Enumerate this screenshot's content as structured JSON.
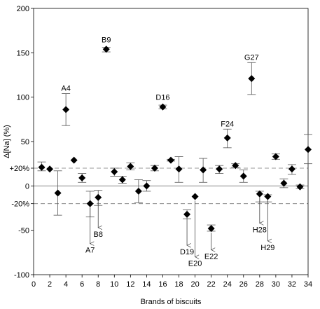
{
  "chart_data": {
    "type": "scatter",
    "title": "",
    "xlabel": "Brands of biscuits",
    "ylabel": "Δ[Na] (%)",
    "xlim": [
      0,
      34
    ],
    "ylim": [
      -100,
      200
    ],
    "x_ticks": [
      "0",
      "2",
      "4",
      "6",
      "8",
      "10",
      "12",
      "14",
      "16",
      "18",
      "20",
      "22",
      "24",
      "26",
      "28",
      "30",
      "32",
      "34"
    ],
    "y_ticks": [
      {
        "value": 200,
        "label": "200"
      },
      {
        "value": 150,
        "label": "150"
      },
      {
        "value": 100,
        "label": "100"
      },
      {
        "value": 50,
        "label": "50"
      },
      {
        "value": 20,
        "label": "+20%"
      },
      {
        "value": 0,
        "label": "0"
      },
      {
        "value": -20,
        "label": "-20%"
      },
      {
        "value": -50,
        "label": "-50"
      },
      {
        "value": -100,
        "label": "-100"
      }
    ],
    "reference_lines": [
      20,
      0,
      -20
    ],
    "series": [
      {
        "marker": "diamond",
        "points": [
          {
            "x": 1,
            "y": 21,
            "err_low": 17,
            "err_high": 27
          },
          {
            "x": 2,
            "y": 19,
            "err_low": 19,
            "err_high": 19
          },
          {
            "x": 3,
            "y": -8,
            "err_low": -33,
            "err_high": 17
          },
          {
            "x": 4,
            "y": 86,
            "err_low": 68,
            "err_high": 104
          },
          {
            "x": 5,
            "y": 29,
            "err_low": 29,
            "err_high": 29
          },
          {
            "x": 6,
            "y": 9,
            "err_low": 4,
            "err_high": 14
          },
          {
            "x": 7,
            "y": -20,
            "err_low": -35,
            "err_high": -6
          },
          {
            "x": 8,
            "y": -13,
            "err_low": -22,
            "err_high": -5
          },
          {
            "x": 9,
            "y": 154,
            "err_low": 151,
            "err_high": 156
          },
          {
            "x": 10,
            "y": 16,
            "err_low": 11,
            "err_high": 20
          },
          {
            "x": 11,
            "y": 7,
            "err_low": 3,
            "err_high": 11
          },
          {
            "x": 12,
            "y": 22,
            "err_low": 18,
            "err_high": 26
          },
          {
            "x": 13,
            "y": -6,
            "err_low": -19,
            "err_high": 7
          },
          {
            "x": 14,
            "y": 0,
            "err_low": -6,
            "err_high": 6
          },
          {
            "x": 15,
            "y": 20,
            "err_low": 17,
            "err_high": 23
          },
          {
            "x": 16,
            "y": 89,
            "err_low": 87,
            "err_high": 91
          },
          {
            "x": 17,
            "y": 29,
            "err_low": 28,
            "err_high": 30
          },
          {
            "x": 18,
            "y": 19,
            "err_low": 4,
            "err_high": 33
          },
          {
            "x": 19,
            "y": -32,
            "err_low": -37,
            "err_high": -27
          },
          {
            "x": 20,
            "y": -12,
            "err_low": -12,
            "err_high": -12
          },
          {
            "x": 21,
            "y": 18,
            "err_low": 4,
            "err_high": 31
          },
          {
            "x": 22,
            "y": -48,
            "err_low": -51,
            "err_high": -44
          },
          {
            "x": 23,
            "y": 19,
            "err_low": 14,
            "err_high": 23
          },
          {
            "x": 24,
            "y": 54,
            "err_low": 43,
            "err_high": 64
          },
          {
            "x": 25,
            "y": 23,
            "err_low": 21,
            "err_high": 25
          },
          {
            "x": 26,
            "y": 11,
            "err_low": 4,
            "err_high": 18
          },
          {
            "x": 27,
            "y": 121,
            "err_low": 103,
            "err_high": 139
          },
          {
            "x": 28,
            "y": -9,
            "err_low": -18,
            "err_high": -6
          },
          {
            "x": 29,
            "y": -12,
            "err_low": -18,
            "err_high": -10
          },
          {
            "x": 30,
            "y": 33,
            "err_low": 30,
            "err_high": 36
          },
          {
            "x": 31,
            "y": 3,
            "err_low": -2,
            "err_high": 8
          },
          {
            "x": 32,
            "y": 19,
            "err_low": 13,
            "err_high": 24
          },
          {
            "x": 33,
            "y": -1,
            "err_low": -3,
            "err_high": 1
          },
          {
            "x": 34,
            "y": 41,
            "err_low": 25,
            "err_high": 58
          }
        ]
      }
    ],
    "annotations": [
      {
        "label": "A4",
        "x": 4,
        "y": 86,
        "position": "above"
      },
      {
        "label": "B9",
        "x": 9,
        "y": 154,
        "position": "above"
      },
      {
        "label": "D16",
        "x": 16,
        "y": 89,
        "position": "above"
      },
      {
        "label": "F24",
        "x": 24,
        "y": 54,
        "position": "above"
      },
      {
        "label": "G27",
        "x": 27,
        "y": 121,
        "position": "above"
      },
      {
        "label": "A7",
        "x": 7,
        "y": -20,
        "position": "below",
        "arrow_to": -65
      },
      {
        "label": "B8",
        "x": 8,
        "y": -13,
        "position": "below",
        "arrow_to": -47
      },
      {
        "label": "D19",
        "x": 19,
        "y": -32,
        "position": "below",
        "arrow_to": -67
      },
      {
        "label": "E20",
        "x": 20,
        "y": -12,
        "position": "below",
        "arrow_to": -80
      },
      {
        "label": "E22",
        "x": 22,
        "y": -48,
        "position": "below",
        "arrow_to": -72
      },
      {
        "label": "H28",
        "x": 28,
        "y": -9,
        "position": "below",
        "arrow_to": -42
      },
      {
        "label": "H29",
        "x": 29,
        "y": -12,
        "position": "below",
        "arrow_to": -62
      }
    ]
  }
}
